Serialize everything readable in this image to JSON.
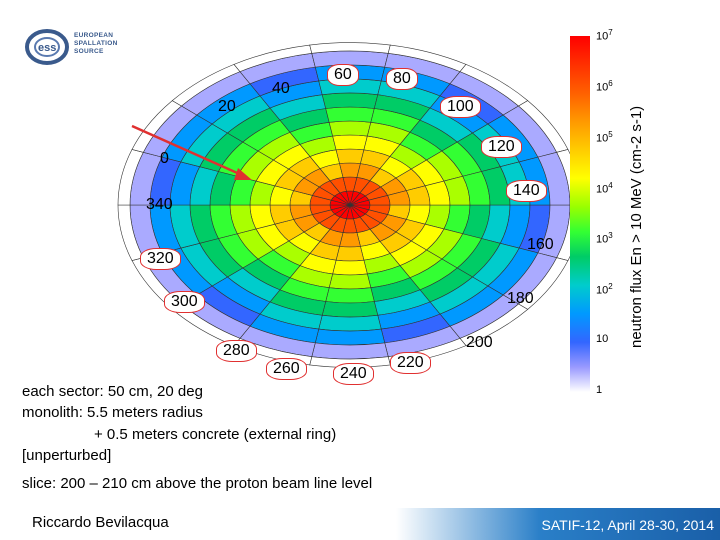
{
  "logo": {
    "icon": "ess-logo-icon",
    "line1": "EUROPEAN",
    "line2": "SPALLATION",
    "line3": "SOURCE",
    "accent": "#3a5a8c"
  },
  "angles": {
    "a0": "0",
    "a20": "20",
    "a40": "40",
    "a60": "60",
    "a80": "80",
    "a100": "100",
    "a120": "120",
    "a140": "140",
    "a160": "160",
    "a180": "180",
    "a200": "200",
    "a220": "220",
    "a240": "240",
    "a260": "260",
    "a280": "280",
    "a300": "300",
    "a320": "320",
    "a340": "340"
  },
  "scale": {
    "ticks": [
      {
        "base": "10",
        "exp": "7"
      },
      {
        "base": "10",
        "exp": "6"
      },
      {
        "base": "10",
        "exp": "5"
      },
      {
        "base": "10",
        "exp": "4"
      },
      {
        "base": "10",
        "exp": "3"
      },
      {
        "base": "10",
        "exp": "2"
      },
      {
        "base": "10",
        "exp": ""
      },
      {
        "base": "1",
        "exp": ""
      }
    ],
    "title": "neutron flux En > 10 MeV (cm-2 s-1)"
  },
  "description": {
    "line1": "each sector: 50 cm, 20 deg",
    "line2": "monolith: 5.5 meters radius",
    "line3": "+ 0.5 meters concrete (external ring)",
    "line4": "[unperturbed]",
    "line5": "slice: 200 – 210 cm above the proton beam line level"
  },
  "footer": {
    "author": "Riccardo Bevilacqua",
    "event": "SATIF-12, April 28-30, 2014"
  },
  "colors": {
    "arrow": "#e03030",
    "circle": "#e03030",
    "footer_blue": "#1a5fa8"
  }
}
